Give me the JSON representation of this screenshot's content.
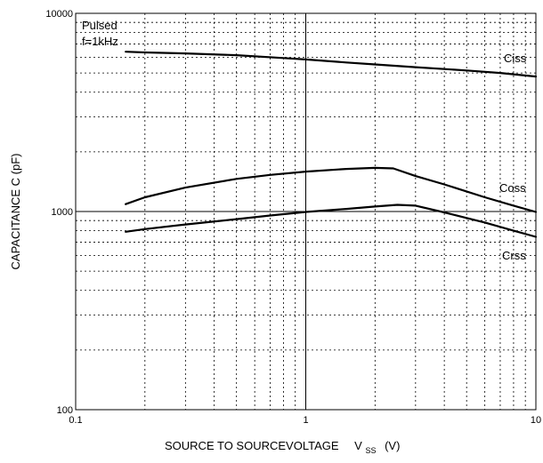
{
  "chart_data": {
    "type": "line",
    "title": "",
    "xlabel": "SOURCE TO SOURCEVOLTAGE",
    "xlabel_symbol": "V",
    "xlabel_subscript": "SS",
    "xlabel_unit": "(V)",
    "ylabel": "CAPACITANCE    C  (pF)",
    "xscale": "log",
    "yscale": "log",
    "xlim": [
      0.1,
      10
    ],
    "ylim": [
      100,
      10000
    ],
    "x_tick_labels": [
      "0.1",
      "1",
      "10"
    ],
    "y_tick_labels": [
      "100",
      "1000",
      "10000"
    ],
    "grid": "dotted minor, solid at 1 and 1000",
    "annotations": [
      "Pulsed",
      "f=1kHz"
    ],
    "series": [
      {
        "name": "Ciss",
        "x": [
          0.165,
          0.2,
          0.3,
          0.5,
          0.8,
          1.0,
          1.5,
          2.0,
          3.0,
          5.0,
          7.0,
          10.0
        ],
        "y": [
          6400,
          6350,
          6280,
          6150,
          5950,
          5850,
          5650,
          5520,
          5350,
          5150,
          5000,
          4800
        ]
      },
      {
        "name": "Coss",
        "x": [
          0.165,
          0.2,
          0.3,
          0.5,
          0.7,
          1.0,
          1.5,
          2.0,
          2.4,
          3.0,
          4.0,
          6.0,
          8.0,
          10.0
        ],
        "y": [
          1090,
          1180,
          1320,
          1460,
          1530,
          1590,
          1640,
          1660,
          1650,
          1510,
          1370,
          1180,
          1070,
          995
        ]
      },
      {
        "name": "Crss",
        "x": [
          0.165,
          0.2,
          0.3,
          0.5,
          0.7,
          1.0,
          1.5,
          2.0,
          2.5,
          3.0,
          4.0,
          6.0,
          8.0,
          10.0
        ],
        "y": [
          790,
          815,
          860,
          915,
          955,
          995,
          1030,
          1060,
          1080,
          1070,
          990,
          880,
          800,
          745
        ]
      }
    ]
  }
}
